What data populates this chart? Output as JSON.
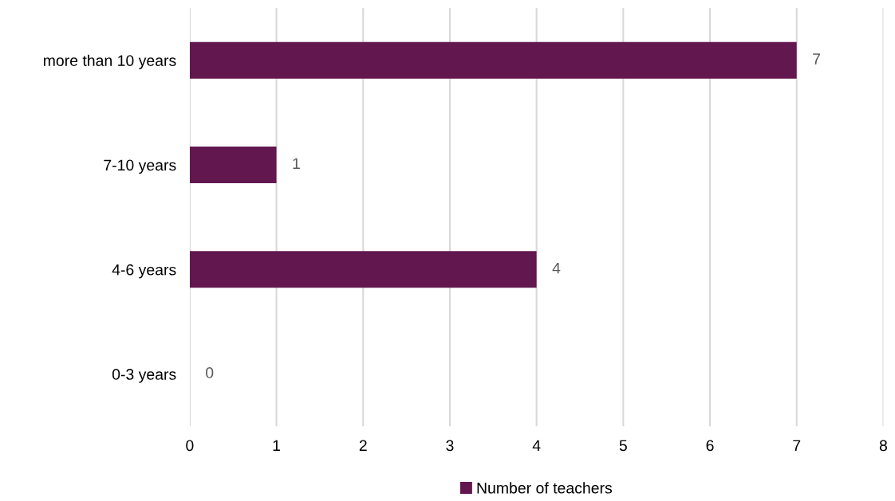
{
  "chart_data": {
    "type": "bar",
    "orientation": "horizontal",
    "categories": [
      "more than 10 years",
      "7-10 years",
      "4-6 years",
      "0-3 years"
    ],
    "series": [
      {
        "name": "Number of teachers",
        "color": "#62174f",
        "values": [
          7,
          1,
          4,
          0
        ]
      }
    ],
    "xlim": [
      0,
      8
    ],
    "xticks": [
      0,
      1,
      2,
      3,
      4,
      5,
      6,
      7,
      8
    ],
    "grid": "x",
    "legend": "bottom",
    "data_labels": true
  }
}
